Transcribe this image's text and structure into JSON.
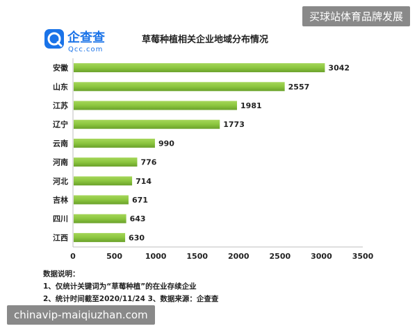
{
  "logo": {
    "brand": "企查查",
    "domain": "Qcc.com",
    "icon": "qcc-logo-icon",
    "accent": "#1a73e8"
  },
  "watermarks": {
    "top": "买球站体育品牌发展",
    "bottom": "chinavip-maiqiuzhan.com"
  },
  "notes": {
    "heading": "数据说明：",
    "line1": "1、仅统计关键词为“草莓种植”的在业存续企业",
    "line2": "2、统计时间截至2020/11/24 3、数据来源：企查查"
  },
  "chart_data": {
    "type": "bar",
    "orientation": "horizontal",
    "title": "草莓种植相关企业地域分布情况",
    "categories": [
      "安徽",
      "山东",
      "江苏",
      "辽宁",
      "云南",
      "河南",
      "河北",
      "吉林",
      "四川",
      "江西"
    ],
    "values": [
      3042,
      2557,
      1981,
      1773,
      990,
      776,
      714,
      671,
      643,
      630
    ],
    "xlim": [
      0,
      3500
    ],
    "xticks": [
      0,
      500,
      1000,
      1500,
      2000,
      2500,
      3000,
      3500
    ],
    "grid": false,
    "legend": "none",
    "bar_color": "#8cc63f",
    "bar_color_dark": "#6aa12a"
  }
}
